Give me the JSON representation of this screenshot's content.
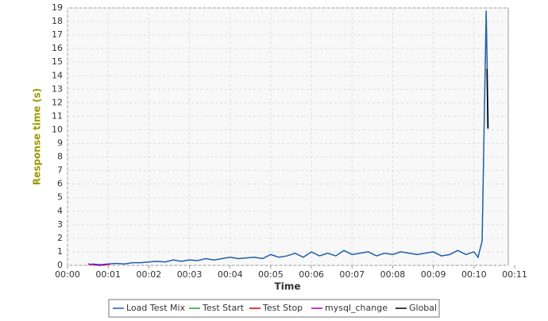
{
  "chart_data": {
    "type": "line",
    "xlabel": "Time",
    "ylabel": "Response time (s)",
    "xlim": [
      0,
      11
    ],
    "ylim": [
      0,
      19
    ],
    "xticks": [
      {
        "value": 0,
        "label": "00:00"
      },
      {
        "value": 1,
        "label": "00:01"
      },
      {
        "value": 2,
        "label": "00:02"
      },
      {
        "value": 3,
        "label": "00:03"
      },
      {
        "value": 4,
        "label": "00:04"
      },
      {
        "value": 5,
        "label": "00:05"
      },
      {
        "value": 6,
        "label": "00:06"
      },
      {
        "value": 7,
        "label": "00:07"
      },
      {
        "value": 8,
        "label": "00:08"
      },
      {
        "value": 9,
        "label": "00:09"
      },
      {
        "value": 10,
        "label": "00:10"
      },
      {
        "value": 11,
        "label": "00:11"
      }
    ],
    "yticks": [
      0,
      1,
      2,
      3,
      4,
      5,
      6,
      7,
      8,
      9,
      10,
      11,
      12,
      13,
      14,
      15,
      16,
      17,
      18,
      19
    ],
    "grid": true,
    "legend": "bottom",
    "series": [
      {
        "name": "Load Test Mix",
        "color": "#1f5fa8",
        "x": [
          0.6,
          0.8,
          1.0,
          1.2,
          1.4,
          1.6,
          1.8,
          2.0,
          2.2,
          2.4,
          2.6,
          2.8,
          3.0,
          3.2,
          3.4,
          3.6,
          3.8,
          4.0,
          4.2,
          4.4,
          4.6,
          4.8,
          5.0,
          5.2,
          5.4,
          5.6,
          5.8,
          6.0,
          6.2,
          6.4,
          6.6,
          6.8,
          7.0,
          7.2,
          7.4,
          7.6,
          7.8,
          8.0,
          8.2,
          8.4,
          8.6,
          8.8,
          9.0,
          9.2,
          9.4,
          9.6,
          9.8,
          10.0,
          10.1,
          10.2,
          10.3,
          10.35
        ],
        "values": [
          0.1,
          0.05,
          0.1,
          0.15,
          0.1,
          0.2,
          0.2,
          0.25,
          0.3,
          0.25,
          0.4,
          0.3,
          0.4,
          0.35,
          0.5,
          0.4,
          0.5,
          0.6,
          0.5,
          0.55,
          0.6,
          0.5,
          0.8,
          0.6,
          0.7,
          0.9,
          0.6,
          1.0,
          0.7,
          0.9,
          0.7,
          1.1,
          0.8,
          0.9,
          1.0,
          0.7,
          0.9,
          0.8,
          1.0,
          0.9,
          0.8,
          0.9,
          1.0,
          0.7,
          0.8,
          1.1,
          0.8,
          1.0,
          0.6,
          1.8,
          18.8,
          10.1
        ]
      },
      {
        "name": "Test Start",
        "color": "#2ca02c",
        "x": [],
        "values": []
      },
      {
        "name": "Test Stop",
        "color": "#cc0000",
        "x": [],
        "values": []
      },
      {
        "name": "mysql_change",
        "color": "#aa00aa",
        "x": [
          0.5,
          0.65,
          0.8,
          0.95,
          1.05
        ],
        "values": [
          0.1,
          0.05,
          0.0,
          0.05,
          0.1
        ]
      },
      {
        "name": "Global",
        "color": "#000000",
        "x": [
          10.32,
          10.34
        ],
        "values": [
          14.5,
          10.1
        ]
      }
    ]
  }
}
